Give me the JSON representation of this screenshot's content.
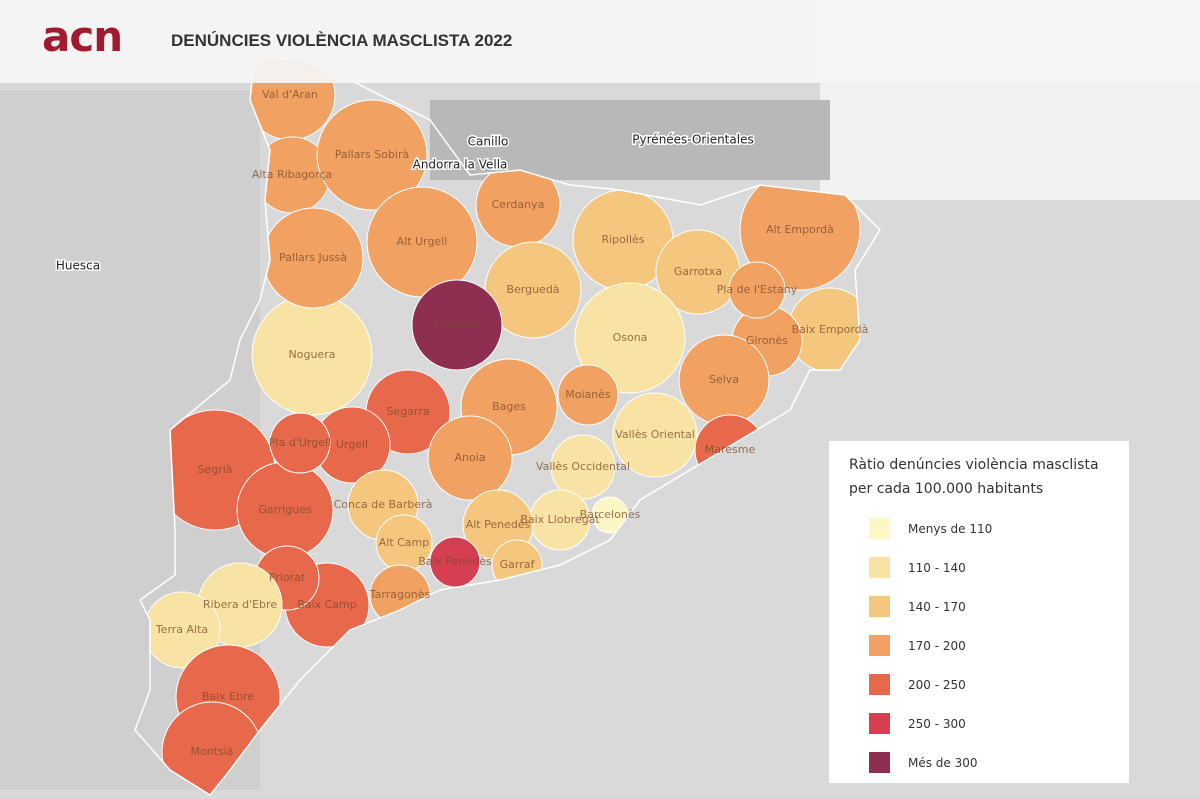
{
  "header": {
    "logo": "acn",
    "title": "DENÚNCIES VIOLÈNCIA MASCLISTA 2022"
  },
  "legend": {
    "title": "Ràtio denúncies violència masclista per cada 100.000 habitants",
    "classes": [
      {
        "label": "Menys de 110",
        "color": "#fdf7c6"
      },
      {
        "label": "110 - 140",
        "color": "#f8e2a4"
      },
      {
        "label": "140 - 170",
        "color": "#f5c67e"
      },
      {
        "label": "170 - 200",
        "color": "#f1a262"
      },
      {
        "label": "200 - 250",
        "color": "#e8684c"
      },
      {
        "label": "250 - 300",
        "color": "#d63e52"
      },
      {
        "label": "Més de 300",
        "color": "#8e2f52"
      }
    ]
  },
  "places": [
    "Huesca",
    "Pyrénées-Orientales",
    "Canillo",
    "Andorra la Vella"
  ],
  "regions": [
    {
      "name": "Segrià",
      "class": 4
    },
    {
      "name": "Garrigues",
      "class": 4
    },
    {
      "name": "Noguera",
      "class": 1
    },
    {
      "name": "Val d'Aran",
      "class": 3
    },
    {
      "name": "Alta Ribagorça",
      "class": 3
    },
    {
      "name": "Pallars Sobirà",
      "class": 3
    },
    {
      "name": "Pallars Jussà",
      "class": 3
    },
    {
      "name": "Alt Urgell",
      "class": 3
    },
    {
      "name": "Cerdanya",
      "class": 3
    },
    {
      "name": "Ripollès",
      "class": 2
    },
    {
      "name": "Garrotxa",
      "class": 2
    },
    {
      "name": "Alt Empordà",
      "class": 3
    },
    {
      "name": "Baix Empordà",
      "class": 2
    },
    {
      "name": "Gironès",
      "class": 3
    },
    {
      "name": "Pla de l'Estany",
      "class": 3
    },
    {
      "name": "Selva",
      "class": 3
    },
    {
      "name": "Osona",
      "class": 1
    },
    {
      "name": "Berguedà",
      "class": 2
    },
    {
      "name": "Segarra",
      "class": 4
    },
    {
      "name": "Urgell",
      "class": 4
    },
    {
      "name": "Pla d'Urgell",
      "class": 4
    },
    {
      "name": "Bages",
      "class": 3
    },
    {
      "name": "Moianès",
      "class": 3
    },
    {
      "name": "Anoia",
      "class": 3
    },
    {
      "name": "Vallès Oriental",
      "class": 1
    },
    {
      "name": "Maresme",
      "class": 4
    },
    {
      "name": "Vallès Occidental",
      "class": 1
    },
    {
      "name": "Baix Llobregat",
      "class": 1
    },
    {
      "name": "Barcelonès",
      "class": 0
    },
    {
      "name": "Alt Penedès",
      "class": 2
    },
    {
      "name": "Garraf",
      "class": 2
    },
    {
      "name": "Conca de Barberà",
      "class": 2
    },
    {
      "name": "Alt Camp",
      "class": 2
    },
    {
      "name": "Tarragonès",
      "class": 3
    },
    {
      "name": "Baix Camp",
      "class": 4
    },
    {
      "name": "Priorat",
      "class": 4
    },
    {
      "name": "Ribera d'Ebre",
      "class": 1
    },
    {
      "name": "Terra Alta",
      "class": 1
    },
    {
      "name": "Baix Ebre",
      "class": 4
    },
    {
      "name": "Montsià",
      "class": 4
    },
    {
      "name": "Baix Penedès",
      "class": 5
    },
    {
      "name": "Solsonès",
      "class": 6
    }
  ]
}
